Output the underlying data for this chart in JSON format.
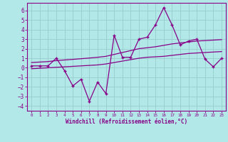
{
  "xlabel": "Windchill (Refroidissement éolien,°C)",
  "background_color": "#b3e8e8",
  "grid_color": "#99cccc",
  "line_color": "#880088",
  "xlim": [
    -0.5,
    23.5
  ],
  "ylim": [
    -4.5,
    6.8
  ],
  "yticks": [
    -4,
    -3,
    -2,
    -1,
    0,
    1,
    2,
    3,
    4,
    5,
    6
  ],
  "xticks": [
    0,
    1,
    2,
    3,
    4,
    5,
    6,
    7,
    8,
    9,
    10,
    11,
    12,
    13,
    14,
    15,
    16,
    17,
    18,
    19,
    20,
    21,
    22,
    23
  ],
  "main_x": [
    0,
    1,
    2,
    3,
    4,
    5,
    6,
    7,
    8,
    9,
    10,
    11,
    12,
    13,
    14,
    15,
    16,
    17,
    18,
    19,
    20,
    21,
    22,
    23
  ],
  "main_y": [
    0.2,
    0.2,
    0.2,
    1.0,
    -0.3,
    -1.9,
    -1.2,
    -3.5,
    -1.5,
    -2.7,
    3.4,
    1.1,
    1.1,
    3.0,
    3.2,
    4.5,
    6.3,
    4.5,
    2.4,
    2.8,
    3.0,
    0.9,
    0.1,
    1.0
  ],
  "upper_x": [
    0,
    1,
    2,
    3,
    4,
    5,
    6,
    7,
    8,
    9,
    10,
    11,
    12,
    13,
    14,
    15,
    16,
    17,
    18,
    19,
    20,
    21,
    22,
    23
  ],
  "upper_y": [
    0.55,
    0.6,
    0.65,
    0.75,
    0.82,
    0.88,
    0.95,
    1.02,
    1.1,
    1.2,
    1.4,
    1.6,
    1.8,
    2.0,
    2.1,
    2.2,
    2.35,
    2.5,
    2.6,
    2.7,
    2.8,
    2.85,
    2.9,
    2.95
  ],
  "lower_x": [
    0,
    1,
    2,
    3,
    4,
    5,
    6,
    7,
    8,
    9,
    10,
    11,
    12,
    13,
    14,
    15,
    16,
    17,
    18,
    19,
    20,
    21,
    22,
    23
  ],
  "lower_y": [
    -0.1,
    -0.05,
    0.0,
    0.05,
    0.1,
    0.15,
    0.2,
    0.25,
    0.3,
    0.4,
    0.55,
    0.7,
    0.85,
    1.0,
    1.1,
    1.15,
    1.2,
    1.3,
    1.4,
    1.5,
    1.55,
    1.6,
    1.65,
    1.7
  ]
}
